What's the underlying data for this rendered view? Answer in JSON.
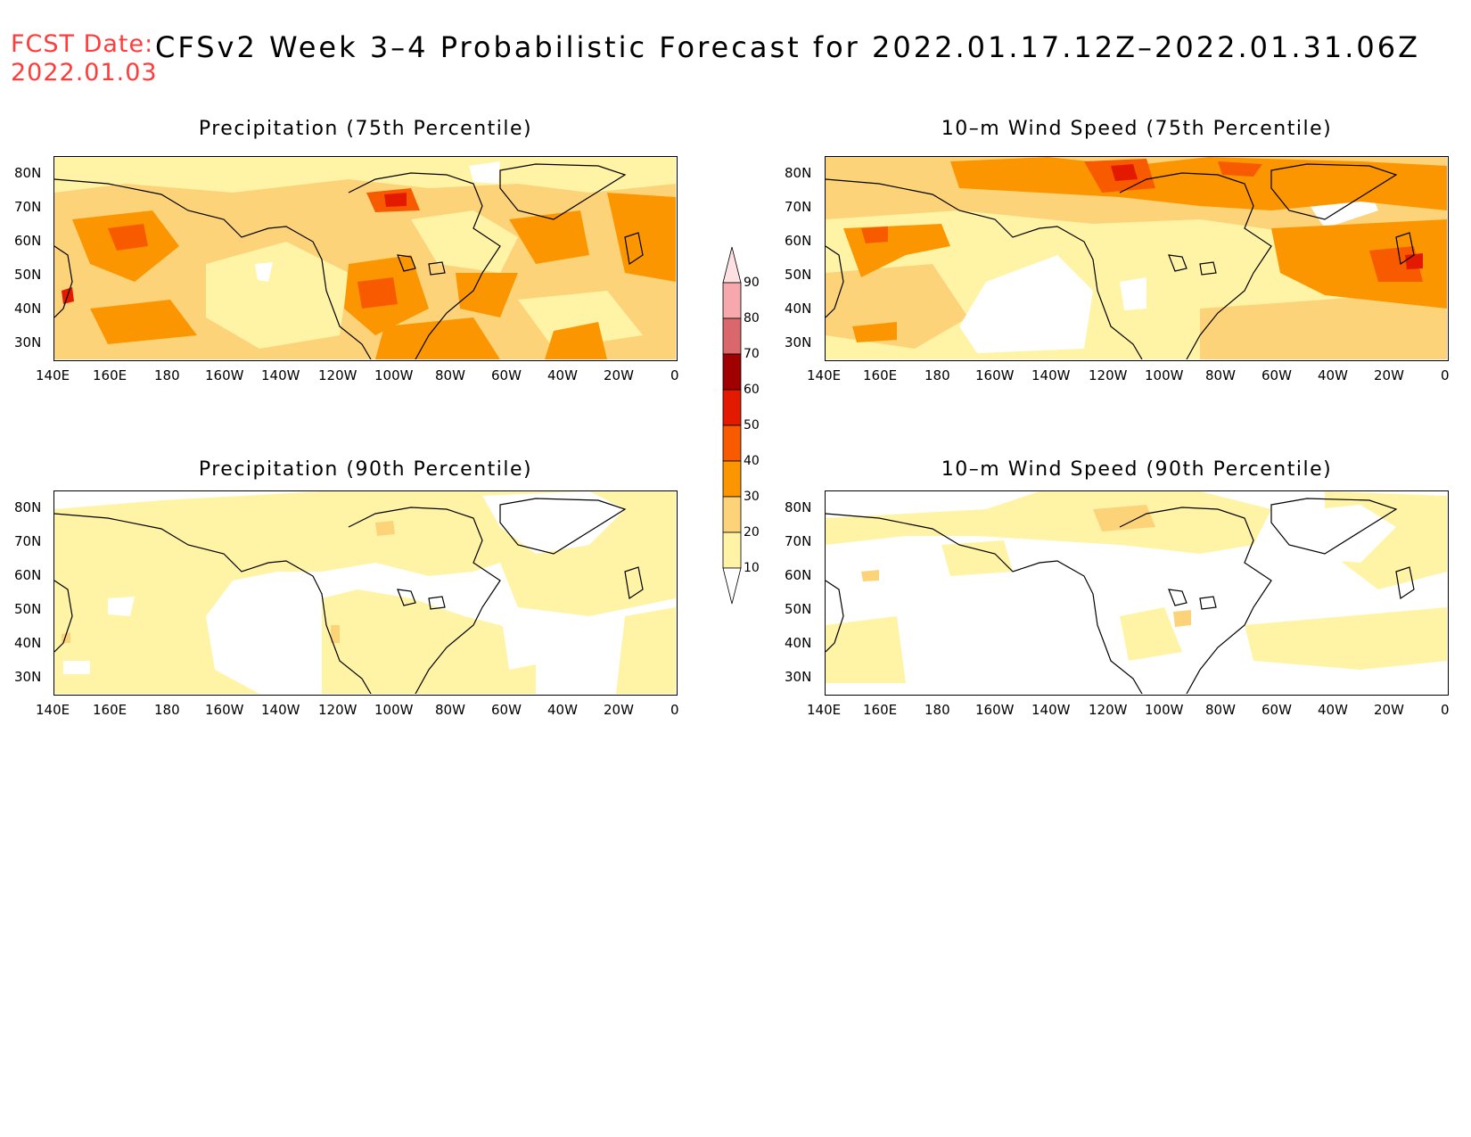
{
  "header": {
    "fcst_label": "FCST Date:",
    "fcst_date": "2022.01.03",
    "title": "CFSv2 Week 3–4 Probabilistic Forecast for 2022.01.17.12Z–2022.01.31.06Z"
  },
  "axes": {
    "lon_ticks": [
      "140E",
      "160E",
      "180",
      "160W",
      "140W",
      "120W",
      "100W",
      "80W",
      "60W",
      "40W",
      "20W",
      "0"
    ],
    "lat_ticks": [
      "80N",
      "70N",
      "60N",
      "50N",
      "40N",
      "30N"
    ]
  },
  "panels": [
    {
      "id": "precip75",
      "title": "Precipitation (75th Percentile)"
    },
    {
      "id": "wind75",
      "title": "10–m Wind Speed (75th Percentile)"
    },
    {
      "id": "precip90",
      "title": "Precipitation (90th Percentile)"
    },
    {
      "id": "wind90",
      "title": "10–m Wind Speed (90th Percentile)"
    }
  ],
  "colorbar": {
    "levels": [
      "90",
      "80",
      "70",
      "60",
      "50",
      "40",
      "30",
      "20",
      "10"
    ],
    "colors": [
      "#f6a8ad",
      "#d9676b",
      "#a00000",
      "#e31a00",
      "#f85a00",
      "#fc9600",
      "#fdd37a",
      "#fff3a6",
      "#ffffff"
    ]
  },
  "colors": {
    "c20": "#fff3a6",
    "c30": "#fdd37a",
    "c40": "#fc9600",
    "c50": "#f85a00",
    "c60": "#e31a00",
    "c70": "#a00000"
  }
}
